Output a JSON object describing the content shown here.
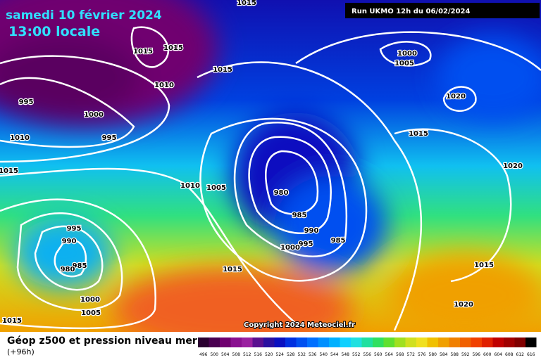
{
  "header": {
    "date": "samedi 10 février 2024",
    "time": "13:00 locale",
    "run": "Run UKMO 12h du 06/02/2024"
  },
  "isobar_labels": [
    1015,
    1015,
    1015,
    1015,
    1010,
    1000,
    1005,
    1020,
    995,
    1000,
    995,
    1010,
    1015,
    1015,
    1020,
    1010,
    1005,
    980,
    985,
    990,
    985,
    995,
    1000,
    995,
    990,
    985,
    980,
    1015,
    1000,
    1005,
    1015,
    1015,
    1020
  ],
  "copyright": "Copyright 2024 Meteociel.fr",
  "legend": {
    "title": "Géop z500 et pression niveau mer",
    "lead": "(+96h)",
    "labels": [
      496,
      500,
      504,
      508,
      512,
      516,
      520,
      524,
      528,
      532,
      536,
      540,
      544,
      548,
      552,
      556,
      560,
      564,
      568,
      572,
      576,
      580,
      584,
      588,
      592,
      596,
      600,
      604,
      608,
      612,
      616
    ],
    "colors": [
      "#2a0030",
      "#4a0050",
      "#700070",
      "#8a1090",
      "#9a20a0",
      "#5a1090",
      "#2a10a0",
      "#0a10c0",
      "#0030e0",
      "#0050f0",
      "#0070ff",
      "#0090ff",
      "#00b0ff",
      "#10d0ff",
      "#20e0e0",
      "#20e0a0",
      "#30e060",
      "#60e030",
      "#a0e020",
      "#d0e020",
      "#f0e020",
      "#f0c000",
      "#f0a000",
      "#f08000",
      "#f06000",
      "#f04000",
      "#e02000",
      "#c00000",
      "#a00000",
      "#800000",
      "#000000"
    ]
  }
}
